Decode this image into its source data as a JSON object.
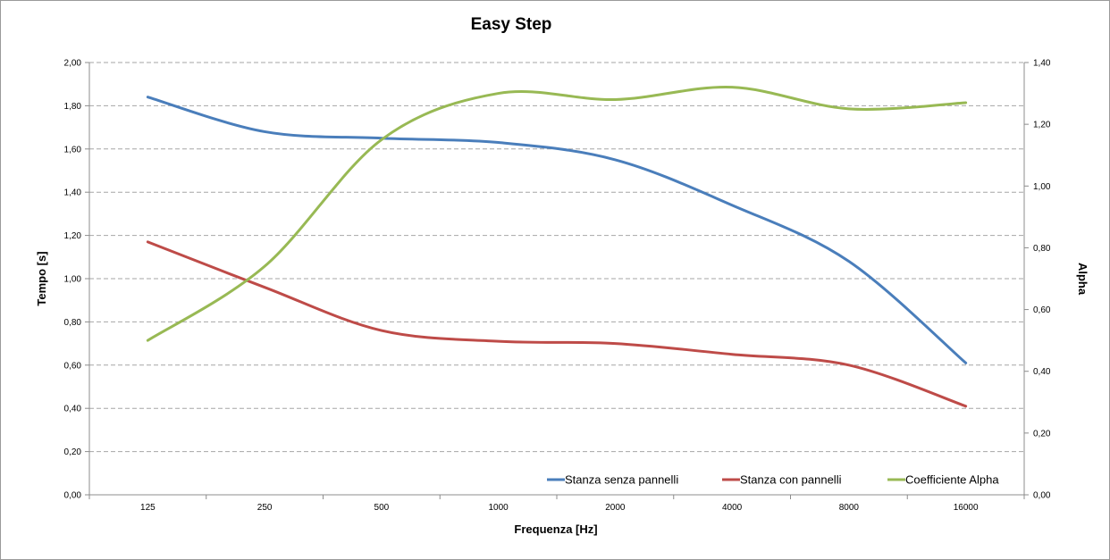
{
  "chart_data": {
    "type": "line",
    "title": "Easy Step",
    "xlabel": "Frequenza [Hz]",
    "ylabel": "Tempo [s]",
    "y2label": "Alpha",
    "categories": [
      "125",
      "250",
      "500",
      "1000",
      "2000",
      "4000",
      "8000",
      "16000"
    ],
    "ylim": [
      0,
      2.0
    ],
    "y2lim": [
      0,
      1.4
    ],
    "yticks": [
      "0,00",
      "0,20",
      "0,40",
      "0,60",
      "0,80",
      "1,00",
      "1,20",
      "1,40",
      "1,60",
      "1,80",
      "2,00"
    ],
    "y2ticks": [
      "0,00",
      "0,20",
      "0,40",
      "0,60",
      "0,80",
      "1,00",
      "1,20",
      "1,40"
    ],
    "grid": true,
    "legend_position": "bottom-right",
    "series": [
      {
        "name": "Stanza senza pannelli",
        "axis": "left",
        "color": "#4a7ebb",
        "values": [
          1.84,
          1.68,
          1.65,
          1.63,
          1.55,
          1.34,
          1.08,
          0.61
        ]
      },
      {
        "name": "Stanza con pannelli",
        "axis": "left",
        "color": "#be4b48",
        "values": [
          1.17,
          0.96,
          0.76,
          0.71,
          0.7,
          0.65,
          0.6,
          0.41
        ]
      },
      {
        "name": "Coefficiente Alpha",
        "axis": "right",
        "color": "#98b954",
        "values": [
          0.5,
          0.74,
          1.15,
          1.3,
          1.28,
          1.32,
          1.25,
          1.27
        ]
      }
    ]
  }
}
